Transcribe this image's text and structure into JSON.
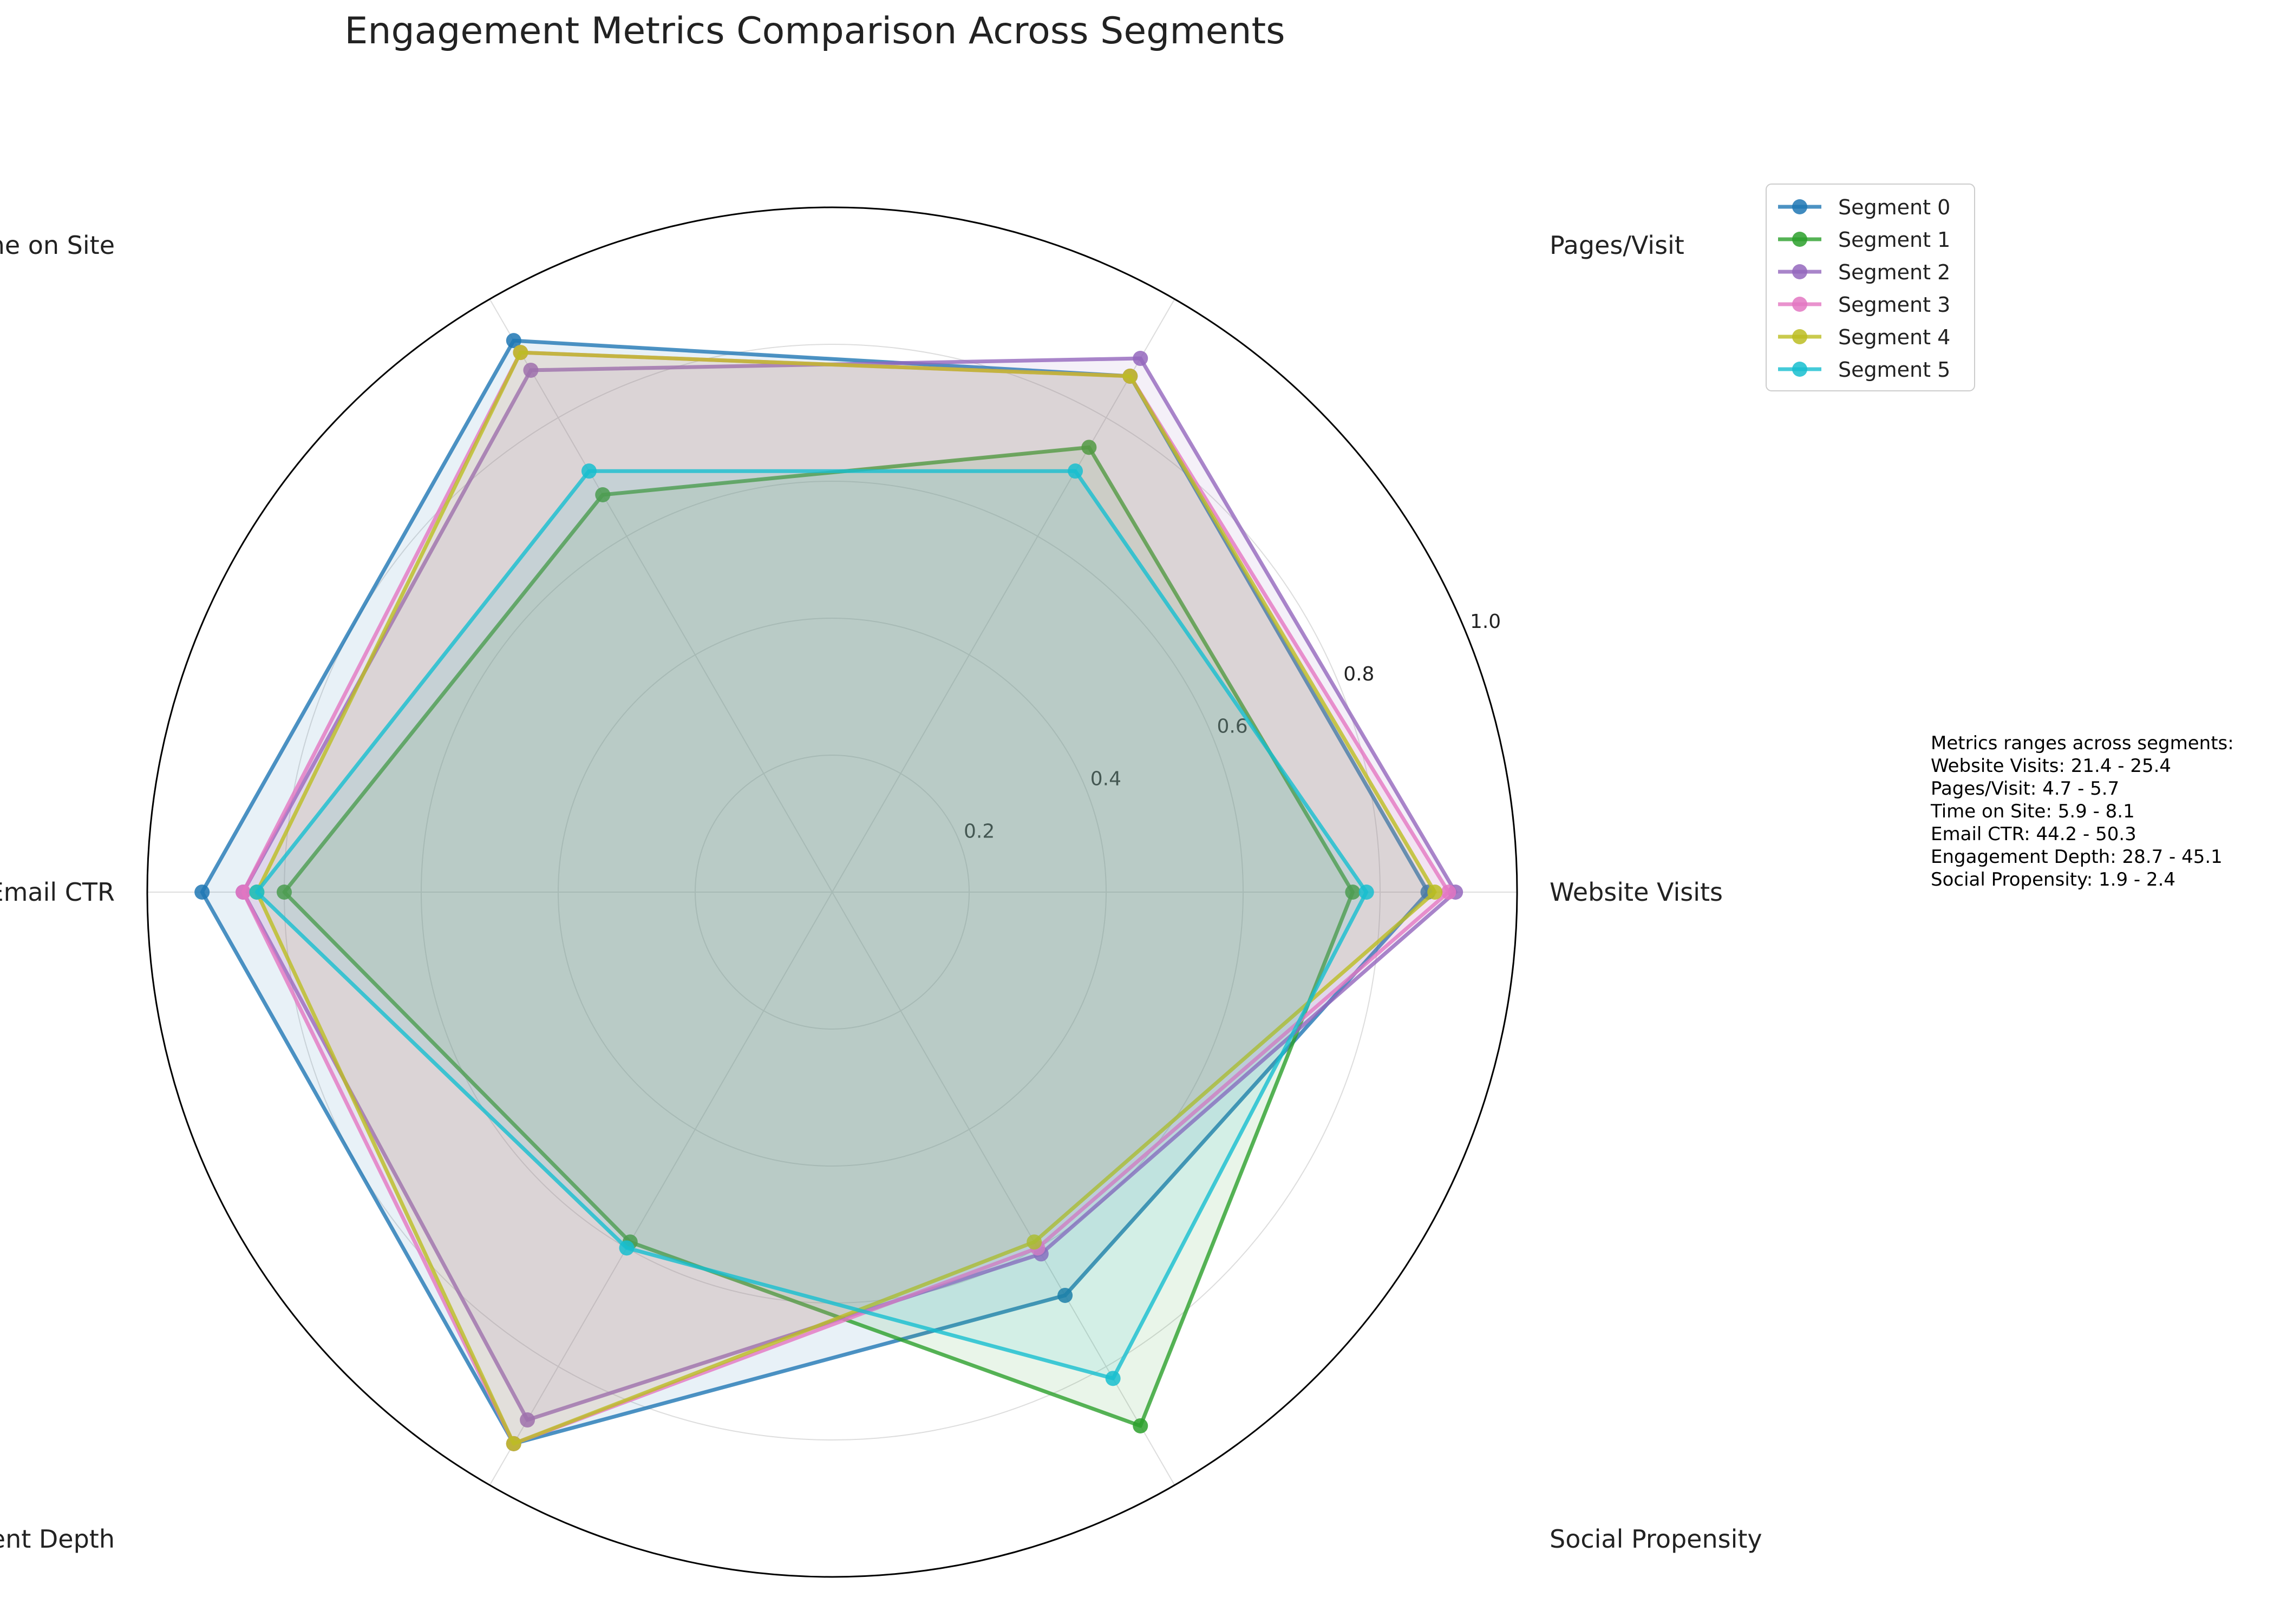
{
  "chart_data": {
    "type": "radar",
    "title": "Engagement Metrics Comparison Across Segments",
    "axes": [
      "Website Visits",
      "Pages/Visit",
      "Time on Site",
      "Email CTR",
      "Engagement Depth",
      "Social Propensity"
    ],
    "rlim": [
      0,
      1.0
    ],
    "r_ticks": [
      0.2,
      0.4,
      0.6,
      0.8,
      1.0
    ],
    "r_tick_labels": [
      "0.2",
      "0.4",
      "0.6",
      "0.8",
      "1.0"
    ],
    "grid": true,
    "legend_position": "top-right, outside plot",
    "series": [
      {
        "name": "Segment 0",
        "color": "#1f77b4",
        "values": [
          0.87,
          0.87,
          0.93,
          0.92,
          0.93,
          0.68
        ]
      },
      {
        "name": "Segment 1",
        "color": "#2ca02c",
        "values": [
          0.76,
          0.75,
          0.67,
          0.8,
          0.59,
          0.9
        ]
      },
      {
        "name": "Segment 2",
        "color": "#9467bd",
        "values": [
          0.91,
          0.9,
          0.88,
          0.86,
          0.89,
          0.61
        ]
      },
      {
        "name": "Segment 3",
        "color": "#e377c2",
        "values": [
          0.9,
          0.87,
          0.91,
          0.86,
          0.93,
          0.6
        ]
      },
      {
        "name": "Segment 4",
        "color": "#bcbd22",
        "values": [
          0.88,
          0.87,
          0.91,
          0.84,
          0.93,
          0.59
        ]
      },
      {
        "name": "Segment 5",
        "color": "#17becf",
        "values": [
          0.78,
          0.71,
          0.71,
          0.84,
          0.6,
          0.82
        ]
      }
    ],
    "annotation": {
      "heading": "Metrics ranges across segments:",
      "lines": [
        "Website Visits: 21.4 - 25.4",
        "Pages/Visit: 4.7 - 5.7",
        "Time on Site: 5.9 - 8.1",
        "Email CTR: 44.2 - 50.3",
        "Engagement Depth: 28.7 - 45.1",
        "Social Propensity: 1.9 - 2.4"
      ]
    }
  }
}
